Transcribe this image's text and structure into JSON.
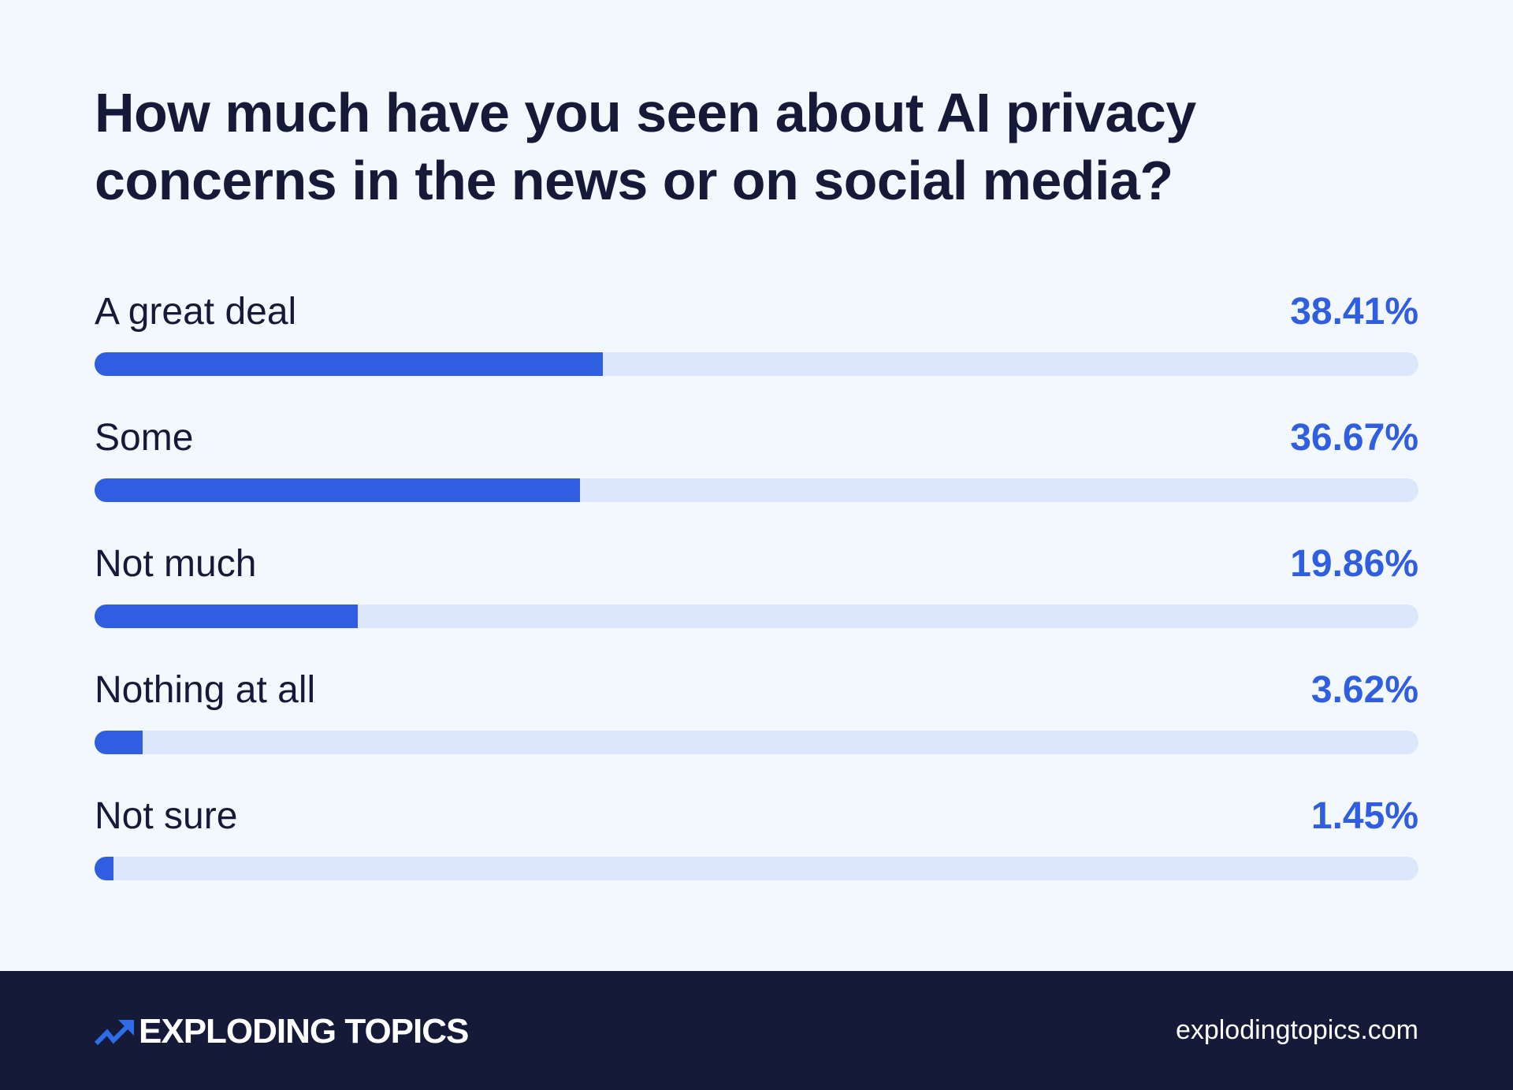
{
  "chart_data": {
    "type": "bar",
    "orientation": "horizontal",
    "title": "How much have you seen about AI privacy concerns in the news or on social media?",
    "categories": [
      "A great deal",
      "Some",
      "Not much",
      "Nothing at all",
      "Not sure"
    ],
    "values": [
      38.41,
      36.67,
      19.86,
      3.62,
      1.45
    ],
    "value_labels": [
      "38.41%",
      "36.67%",
      "19.86%",
      "3.62%",
      "1.45%"
    ],
    "xlim": [
      0,
      100
    ],
    "grid": false,
    "colors": {
      "fill": "#2f5fe0",
      "track": "#dce7fb",
      "text": "#141a38"
    }
  },
  "footer": {
    "brand": "EXPLODING TOPICS",
    "site": "explodingtopics.com",
    "logo_icon": "trending-up-arrow-icon",
    "background": "#141a38"
  }
}
